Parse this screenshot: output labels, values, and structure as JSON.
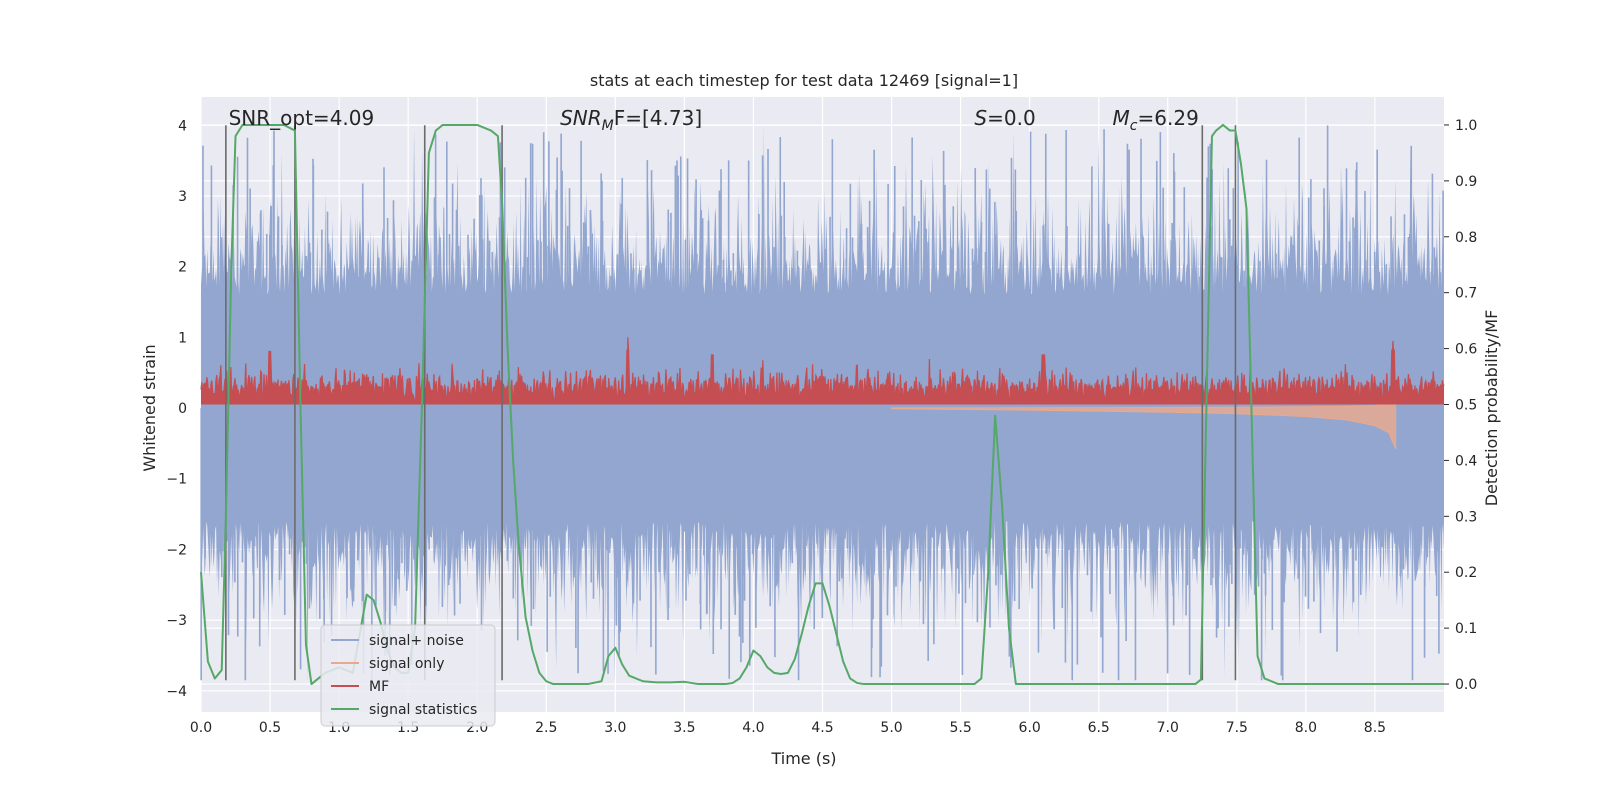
{
  "chart_data": {
    "type": "line",
    "title": "stats at each timestep for test data 12469 [signal=1]",
    "xlabel": "Time (s)",
    "ylabel": "Whitened strain",
    "y2label": "Detection probability/MF",
    "xlim": [
      0,
      9
    ],
    "ylim": [
      -4.3,
      4.4
    ],
    "y2lim": [
      -0.05,
      1.05
    ],
    "grid": true,
    "legend_position": "lower-left",
    "x_ticks": [
      "0.0",
      "0.5",
      "1.0",
      "1.5",
      "2.0",
      "2.5",
      "3.0",
      "3.5",
      "4.0",
      "4.5",
      "5.0",
      "5.5",
      "6.0",
      "6.5",
      "7.0",
      "7.5",
      "8.0",
      "8.5"
    ],
    "y_ticks": [
      "4",
      "3",
      "2",
      "1",
      "0",
      "−1",
      "−2",
      "−3",
      "−4"
    ],
    "y2_ticks": [
      "1.0",
      "0.9",
      "0.8",
      "0.7",
      "0.6",
      "0.5",
      "0.4",
      "0.3",
      "0.2",
      "0.1",
      "0.0"
    ],
    "annotations": [
      {
        "id": "snr-opt",
        "text": "SNR_opt=4.09",
        "x": 0.2,
        "y": 4.1
      },
      {
        "id": "snr-mf",
        "base": "SNR",
        "sub": "M",
        "after": "F=[4.73]",
        "x": 2.6,
        "y": 4.1
      },
      {
        "id": "s-stat",
        "base": "S",
        "after": "=0.0",
        "x": 5.6,
        "y": 4.1
      },
      {
        "id": "mc",
        "base": "M",
        "sub": "c",
        "after": "=6.29",
        "x": 6.6,
        "y": 4.1
      }
    ],
    "vlines": [
      0.18,
      0.68,
      1.62,
      2.18,
      7.25,
      7.49
    ],
    "vline_range": [
      -3.85,
      4.0
    ],
    "series": [
      {
        "name": "signal+ noise",
        "color": "#92a6cf",
        "axis": "left",
        "kind": "noise",
        "x_range": [
          0,
          9
        ],
        "core_amplitude": 1.6,
        "peak_amplitude": 3.6
      },
      {
        "name": "signal only",
        "color": "#e8a98f",
        "axis": "left",
        "kind": "chirp",
        "x": [
          5.0,
          6.0,
          7.0,
          7.5,
          8.0,
          8.3,
          8.5,
          8.6,
          8.65
        ],
        "amplitude": [
          0.01,
          0.03,
          0.06,
          0.08,
          0.12,
          0.17,
          0.25,
          0.35,
          0.58
        ]
      },
      {
        "name": "MF",
        "color": "#c44e52",
        "axis": "left",
        "kind": "band",
        "x_range": [
          0,
          9
        ],
        "baseline": 0.05,
        "mean": 0.3,
        "peaks": [
          [
            0.5,
            0.8
          ],
          [
            3.09,
            1.0
          ],
          [
            3.7,
            0.75
          ],
          [
            6.1,
            0.75
          ],
          [
            8.63,
            0.95
          ]
        ]
      },
      {
        "name": "signal statistics",
        "color": "#55a868",
        "axis": "right",
        "x": [
          0.0,
          0.05,
          0.1,
          0.15,
          0.18,
          0.22,
          0.25,
          0.3,
          0.35,
          0.4,
          0.5,
          0.6,
          0.68,
          0.72,
          0.76,
          0.8,
          0.85,
          0.9,
          1.0,
          1.1,
          1.2,
          1.25,
          1.3,
          1.35,
          1.4,
          1.45,
          1.5,
          1.55,
          1.6,
          1.65,
          1.7,
          1.75,
          1.8,
          1.9,
          2.0,
          2.1,
          2.15,
          2.18,
          2.22,
          2.26,
          2.3,
          2.35,
          2.4,
          2.45,
          2.5,
          2.55,
          2.6,
          2.7,
          2.8,
          2.9,
          2.95,
          3.0,
          3.05,
          3.1,
          3.2,
          3.3,
          3.4,
          3.5,
          3.6,
          3.7,
          3.8,
          3.85,
          3.9,
          3.95,
          4.0,
          4.05,
          4.1,
          4.15,
          4.2,
          4.25,
          4.3,
          4.35,
          4.4,
          4.45,
          4.5,
          4.55,
          4.6,
          4.65,
          4.7,
          4.75,
          4.8,
          4.9,
          5.0,
          5.2,
          5.4,
          5.6,
          5.65,
          5.7,
          5.75,
          5.8,
          5.85,
          5.9,
          6.0,
          6.5,
          7.0,
          7.2,
          7.24,
          7.28,
          7.32,
          7.35,
          7.4,
          7.45,
          7.49,
          7.53,
          7.57,
          7.61,
          7.65,
          7.7,
          7.8,
          8.0,
          8.5,
          9.0
        ],
        "values": [
          0.2,
          0.04,
          0.01,
          0.025,
          0.3,
          0.75,
          0.98,
          1.0,
          1.0,
          1.0,
          1.0,
          1.0,
          0.99,
          0.5,
          0.07,
          0.0,
          0.01,
          0.02,
          0.03,
          0.02,
          0.16,
          0.15,
          0.11,
          0.06,
          0.03,
          0.02,
          0.02,
          0.1,
          0.5,
          0.95,
          0.99,
          1.0,
          1.0,
          1.0,
          1.0,
          0.99,
          0.98,
          0.86,
          0.6,
          0.4,
          0.25,
          0.12,
          0.06,
          0.02,
          0.005,
          0.0,
          0.0,
          0.0,
          0.0,
          0.005,
          0.05,
          0.065,
          0.035,
          0.015,
          0.005,
          0.003,
          0.003,
          0.004,
          0.0,
          0.0,
          0.0,
          0.002,
          0.01,
          0.03,
          0.06,
          0.05,
          0.03,
          0.02,
          0.018,
          0.02,
          0.045,
          0.09,
          0.14,
          0.18,
          0.18,
          0.14,
          0.09,
          0.04,
          0.01,
          0.002,
          0.0,
          0.0,
          0.0,
          0.0,
          0.0,
          0.0,
          0.01,
          0.2,
          0.48,
          0.32,
          0.1,
          0.0,
          0.0,
          0.0,
          0.0,
          0.0,
          0.008,
          0.5,
          0.98,
          0.99,
          1.0,
          0.99,
          0.99,
          0.93,
          0.85,
          0.45,
          0.05,
          0.01,
          0.0,
          0.0,
          0.0,
          0.0
        ]
      }
    ]
  }
}
